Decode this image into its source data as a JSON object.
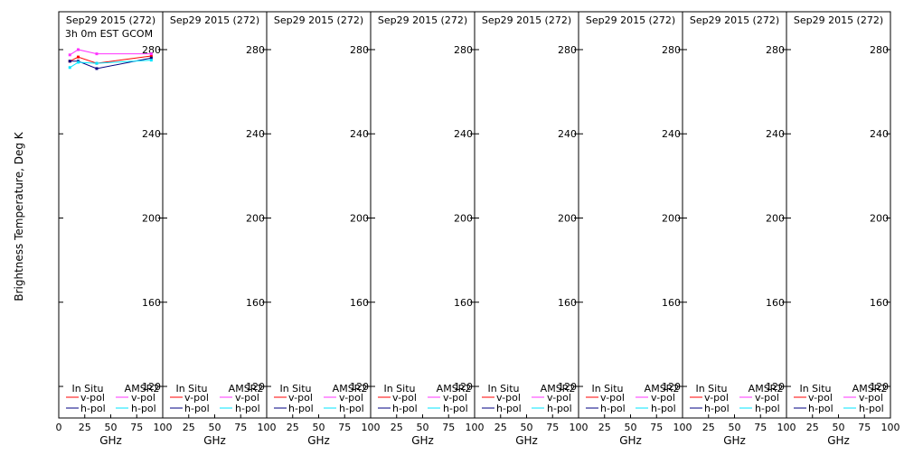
{
  "chart_data": {
    "type": "line",
    "ylabel": "Brightness Temperature, Deg K",
    "xlabel": "GHz",
    "xlim": [
      0,
      100
    ],
    "ylim": [
      105,
      298
    ],
    "x_ticks": [
      0,
      25,
      50,
      75,
      100
    ],
    "x_tick_labels_first": [
      "0",
      "25",
      "50",
      "75",
      "100"
    ],
    "x_tick_labels_other": [
      "25",
      "50",
      "75",
      "100"
    ],
    "y_ticks": [
      120,
      160,
      200,
      240,
      280
    ],
    "colors": {
      "insitu_v": "#ff0000",
      "insitu_h": "#000080",
      "amsr2_v": "#ff33ff",
      "amsr2_h": "#00e5ff"
    },
    "legend": {
      "insitu_title": "In Situ",
      "amsr2_title": "AMSR2",
      "v_label": "v-pol",
      "h_label": "h-pol"
    },
    "panels": [
      {
        "date": "Sep29 2015 (272)",
        "subtitle": "3h 0m EST GCOM",
        "series": [
          {
            "name": "In Situ v-pol",
            "key": "insitu_v",
            "x": [
              10.65,
              18.7,
              36.5,
              89.0
            ],
            "y": [
              274.5,
              276.5,
              273.5,
              277.0
            ]
          },
          {
            "name": "In Situ h-pol",
            "key": "insitu_h",
            "x": [
              10.65,
              18.7,
              36.5,
              89.0
            ],
            "y": [
              274.5,
              274.5,
              271.0,
              276.0
            ]
          },
          {
            "name": "AMSR2 v-pol",
            "key": "amsr2_v",
            "x": [
              10.65,
              18.7,
              36.5,
              89.0
            ],
            "y": [
              277.5,
              280.0,
              278.0,
              278.0
            ]
          },
          {
            "name": "AMSR2 h-pol",
            "key": "amsr2_h",
            "x": [
              10.65,
              18.7,
              36.5,
              89.0
            ],
            "y": [
              271.5,
              274.0,
              273.5,
              275.0
            ]
          }
        ]
      },
      {
        "date": "Sep29 2015 (272)",
        "subtitle": "",
        "series": []
      },
      {
        "date": "Sep29 2015 (272)",
        "subtitle": "",
        "series": []
      },
      {
        "date": "Sep29 2015 (272)",
        "subtitle": "",
        "series": []
      },
      {
        "date": "Sep29 2015 (272)",
        "subtitle": "",
        "series": []
      },
      {
        "date": "Sep29 2015 (272)",
        "subtitle": "",
        "series": []
      },
      {
        "date": "Sep29 2015 (272)",
        "subtitle": "",
        "series": []
      },
      {
        "date": "Sep29 2015 (272)",
        "subtitle": "",
        "series": []
      }
    ]
  }
}
